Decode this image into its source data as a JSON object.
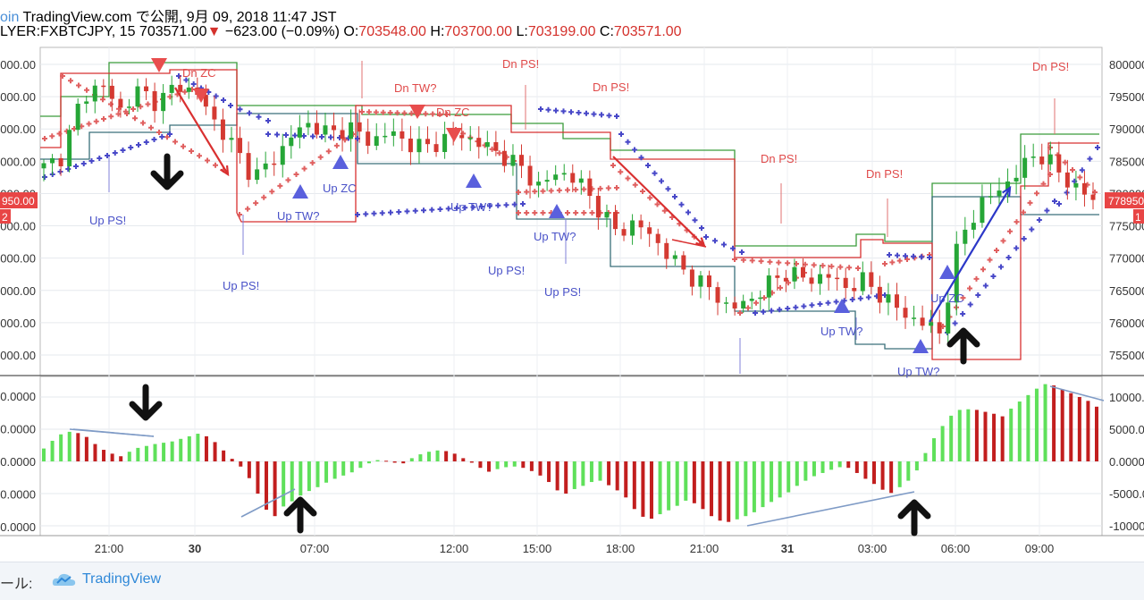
{
  "header": {
    "line1_source": "oin",
    "line1_site": "TradingView.com",
    "line1_rest": "で公開, 9月 09, 2018 11:47 JST",
    "symbol": "LYER:FXBTCJPY, 15",
    "last": "703571.00",
    "change": "−623.00 (−0.09%)",
    "ohlc_o_label": "O:",
    "ohlc_o": "703548.00",
    "ohlc_h_label": "H:",
    "ohlc_h": "703700.00",
    "ohlc_l_label": "L:",
    "ohlc_l": "703199.00",
    "ohlc_c_label": "C:",
    "ohlc_c": "703571.00"
  },
  "footer": {
    "label": "ール:",
    "brand": "TradingView"
  },
  "colors": {
    "up": "#26a637",
    "down": "#d43a32",
    "osc_up": "#5fe05a",
    "osc_down": "#c21e1e",
    "psar_red": "#e06060",
    "psar_blue": "#4848c8",
    "env_red": "#d83030",
    "env_green": "#3b9c3b",
    "marker_red": "#e84d4d",
    "marker_blue": "#5a60dd"
  },
  "chart_data": [
    {
      "type": "candlestick",
      "title": "",
      "left_axis_labels": [
        "0000.00",
        "5000.00",
        "0000.00",
        "5000.00",
        "0000.00",
        "5000.00",
        "0000.00",
        "5000.00",
        "0000.00",
        "5000.00"
      ],
      "right_axis_labels": [
        "800000",
        "795000",
        "790000",
        "785000",
        "780000",
        "775000",
        "770000",
        "765000",
        "760000",
        "755000"
      ],
      "right_axis_values": [
        800000,
        795000,
        790000,
        785000,
        780000,
        775000,
        770000,
        765000,
        760000,
        755000
      ],
      "price_tag_right": "778950",
      "price_tag_left": "950.00",
      "price_tag_left2": "2",
      "price_tag_right2": "1",
      "x_ticks": [
        "21:00",
        "30",
        "07:00",
        "12:00",
        "15:00",
        "18:00",
        "21:00",
        "31",
        "03:00",
        "06:00",
        "09:00"
      ],
      "close_path": [
        784000,
        786000,
        795000,
        797000,
        793000,
        796000,
        794000,
        797000,
        795500,
        791000,
        787000,
        782500,
        785000,
        789000,
        791000,
        789000,
        790500,
        788000,
        789500,
        788000,
        787000,
        788500,
        789000,
        787500,
        786000,
        784000,
        781000,
        783500,
        782000,
        778000,
        774000,
        775500,
        773000,
        769500,
        767000,
        765000,
        762000,
        763500,
        766000,
        768000,
        766500,
        767500,
        765500,
        766500,
        764000,
        761500,
        760000,
        758500,
        773000,
        778000,
        780500,
        783000,
        786500,
        784000,
        781000,
        779000
      ],
      "annotations_up": [
        "Up PS!",
        "Up PS!",
        "Up TW?",
        "Up ZC",
        "Up TW?",
        "Up PS!",
        "Up PS!",
        "Up TW?",
        "Up TW?",
        "Up ZC"
      ],
      "annotations_dn": [
        "Dn ZC",
        "Dn TW?",
        "Dn ZC",
        "Dn PS!",
        "Dn PS!",
        "Dn PS!",
        "Dn PS!",
        "Dn PS!"
      ]
    },
    {
      "type": "bar",
      "title": "",
      "axis_labels_right": [
        "10000.0",
        "5000.00",
        "0.0000",
        "-5000.00",
        "-10000.00"
      ],
      "axis_values_right": [
        10000,
        5000,
        0,
        -5000,
        -10000
      ],
      "axis_labels_left": [
        "0.0000",
        "0.0000",
        "0.0000",
        "0.0000",
        "0.0000"
      ],
      "values": [
        2000,
        3200,
        4200,
        4600,
        4400,
        3800,
        2700,
        1800,
        1200,
        800,
        1500,
        2100,
        2400,
        2700,
        2900,
        3100,
        3500,
        3900,
        4300,
        3900,
        3000,
        1700,
        400,
        -800,
        -2600,
        -5000,
        -7500,
        -8500,
        -7000,
        -6200,
        -5300,
        -4600,
        -4000,
        -3300,
        -2700,
        -2200,
        -1700,
        -1000,
        -300,
        200,
        100,
        -200,
        -300,
        500,
        1100,
        1500,
        1700,
        1600,
        1200,
        500,
        -200,
        -1000,
        -1600,
        -1200,
        -900,
        -800,
        -1000,
        -1500,
        -2200,
        -3200,
        -4500,
        -5000,
        -4300,
        -3800,
        -3200,
        -3000,
        -3700,
        -4500,
        -5600,
        -7400,
        -8600,
        -8900,
        -8200,
        -7600,
        -6900,
        -6100,
        -6500,
        -7400,
        -8500,
        -9200,
        -9400,
        -9000,
        -8500,
        -7900,
        -7100,
        -6300,
        -5600,
        -4800,
        -3800,
        -3000,
        -2300,
        -1800,
        -1300,
        -900,
        -1000,
        -1800,
        -2700,
        -3500,
        -4400,
        -4900,
        -4000,
        -3000,
        -1400,
        1300,
        3600,
        5500,
        7100,
        8000,
        8100,
        8000,
        7700,
        7400,
        7000,
        8200,
        9300,
        10300,
        11300,
        12000,
        11800,
        11200,
        10600,
        10000,
        9400,
        8500
      ]
    }
  ]
}
